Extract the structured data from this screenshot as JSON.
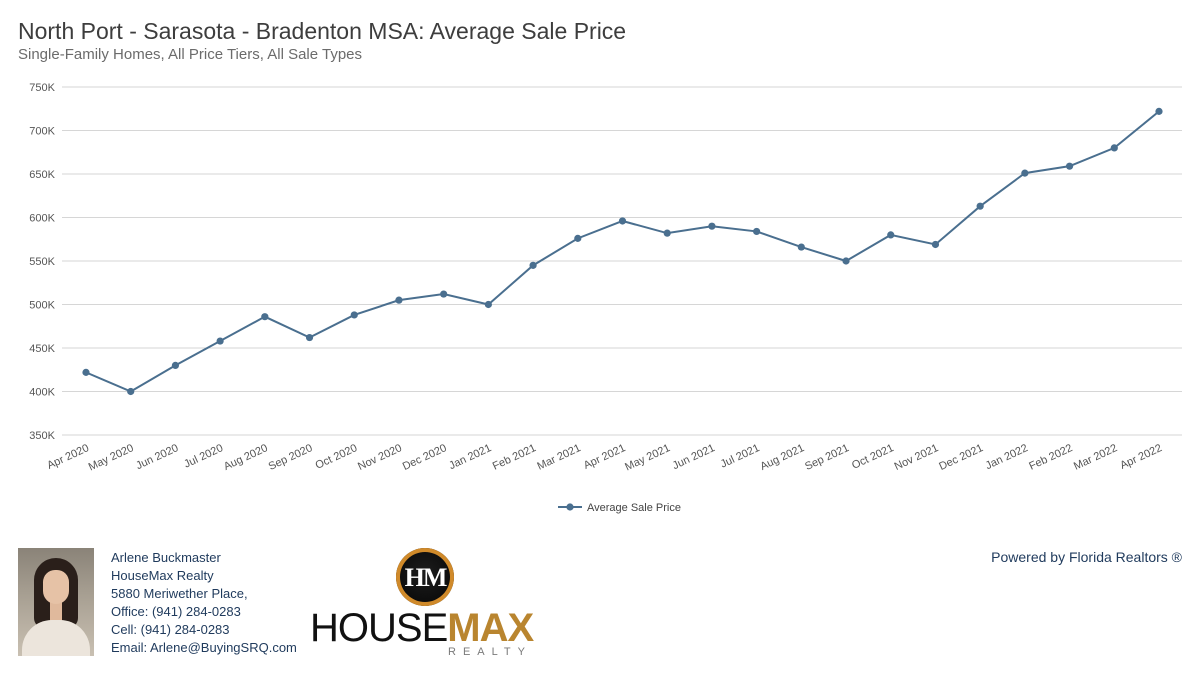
{
  "header": {
    "title": "North Port - Sarasota - Bradenton MSA: Average Sale Price",
    "subtitle": "Single-Family Homes, All Price Tiers, All Sale Types"
  },
  "chart_data": {
    "type": "line",
    "title": "North Port - Sarasota - Bradenton MSA: Average Sale Price",
    "subtitle": "Single-Family Homes, All Price Tiers, All Sale Types",
    "xlabel": "",
    "ylabel": "",
    "ylim": [
      350000,
      750000
    ],
    "y_ticks": [
      350000,
      400000,
      450000,
      500000,
      550000,
      600000,
      650000,
      700000,
      750000
    ],
    "y_tick_labels": [
      "350K",
      "400K",
      "450K",
      "500K",
      "550K",
      "600K",
      "650K",
      "700K",
      "750K"
    ],
    "categories": [
      "Apr 2020",
      "May 2020",
      "Jun 2020",
      "Jul 2020",
      "Aug 2020",
      "Sep 2020",
      "Oct 2020",
      "Nov 2020",
      "Dec 2020",
      "Jan 2021",
      "Feb 2021",
      "Mar 2021",
      "Apr 2021",
      "May 2021",
      "Jun 2021",
      "Jul 2021",
      "Aug 2021",
      "Sep 2021",
      "Oct 2021",
      "Nov 2021",
      "Dec 2021",
      "Jan 2022",
      "Feb 2022",
      "Mar 2022",
      "Apr 2022"
    ],
    "series": [
      {
        "name": "Average Sale Price",
        "color": "#4a6f8f",
        "values": [
          422000,
          400000,
          430000,
          458000,
          486000,
          462000,
          488000,
          505000,
          512000,
          500000,
          545000,
          576000,
          596000,
          582000,
          590000,
          584000,
          566000,
          550000,
          580000,
          569000,
          613000,
          651000,
          659000,
          680000,
          722000
        ]
      }
    ],
    "grid": true,
    "legend": "bottom-center"
  },
  "footer": {
    "agent_name": "Arlene Buckmaster",
    "brokerage": "HouseMax Realty",
    "address": "5880 Meriwether Place,",
    "office": "Office: (941) 284-0283",
    "cell": "Cell: (941) 284-0283",
    "email": "Email: Arlene@BuyingSRQ.com",
    "logo_monogram": "HM",
    "logo_word_1": "HOUSE",
    "logo_word_2": "MAX",
    "logo_sub": "REALTY",
    "powered_by": "Powered by Florida Realtors ®"
  }
}
